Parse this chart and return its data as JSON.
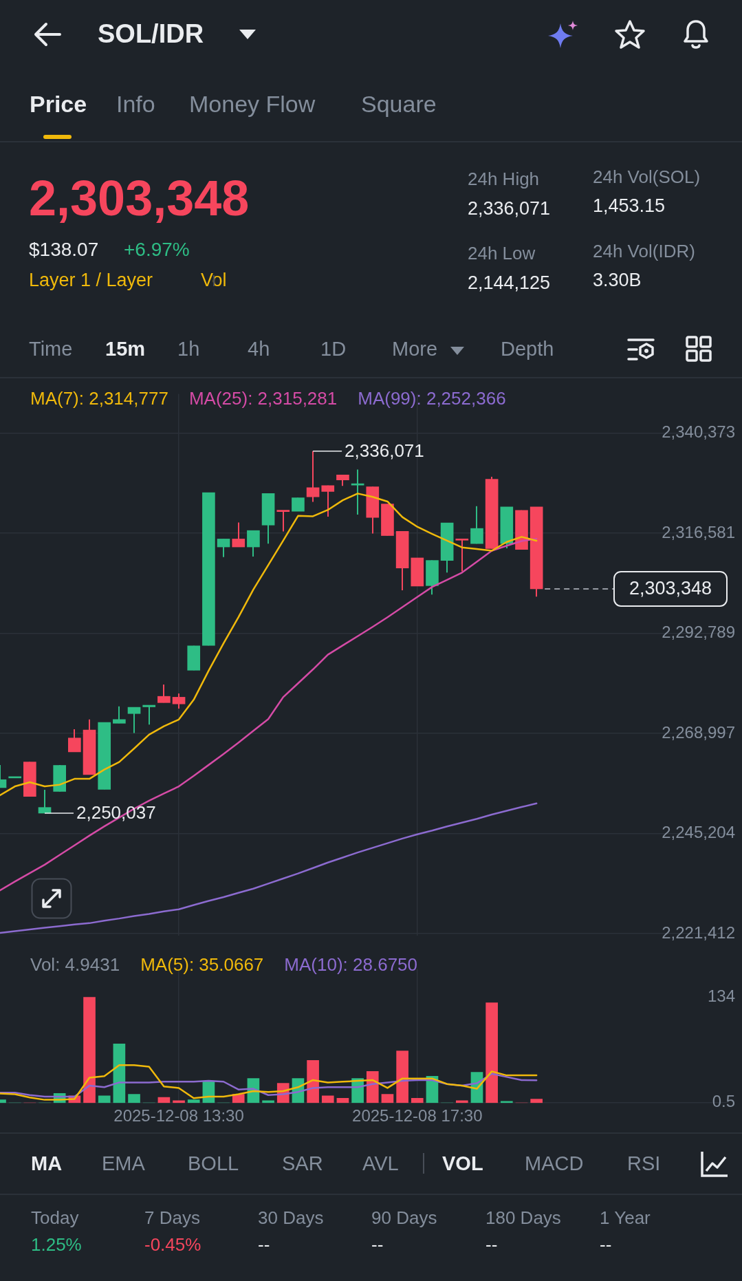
{
  "chart_data": [
    {
      "type": "other",
      "title": "SOL/IDR",
      "annotations": [
        "Price",
        "Info",
        "Money Flow",
        "Square",
        "2,303,348",
        "$138.07",
        "+6.97%",
        "Layer 1 / Layer",
        "Vol",
        "24h High",
        "2,336,071",
        "24h Low",
        "2,144,125",
        "24h Vol(SOL)",
        "1,453.15",
        "24h Vol(IDR)",
        "3.30B",
        "Time",
        "15m",
        "1h",
        "4h",
        "1D",
        "More",
        "Depth"
      ]
    },
    {
      "type": "candlestick",
      "x": [
        "2025-12-08T10:30",
        "2025-12-08T10:45",
        "2025-12-08T11:00",
        "2025-12-08T11:15",
        "2025-12-08T11:30",
        "2025-12-08T11:45",
        "2025-12-08T12:00",
        "2025-12-08T12:15",
        "2025-12-08T12:30",
        "2025-12-08T12:45",
        "2025-12-08T13:00",
        "2025-12-08T13:15",
        "2025-12-08T13:30",
        "2025-12-08T13:45",
        "2025-12-08T14:00",
        "2025-12-08T14:15",
        "2025-12-08T14:30",
        "2025-12-08T14:45",
        "2025-12-08T15:00",
        "2025-12-08T15:15",
        "2025-12-08T15:30",
        "2025-12-08T15:45",
        "2025-12-08T16:00",
        "2025-12-08T16:15",
        "2025-12-08T16:30",
        "2025-12-08T16:45",
        "2025-12-08T17:00",
        "2025-12-08T17:15",
        "2025-12-08T17:30",
        "2025-12-08T17:45",
        "2025-12-08T18:00",
        "2025-12-08T18:15",
        "2025-12-08T18:30",
        "2025-12-08T18:45",
        "2025-12-08T19:00",
        "2025-12-08T19:15",
        "2025-12-08T19:30"
      ],
      "ohlc": [
        [
          2256100,
          2261500,
          2256100,
          2258000
        ],
        [
          2258400,
          2258400,
          2258400,
          2258400
        ],
        [
          2262200,
          2262200,
          2254000,
          2254000
        ],
        [
          2250037,
          2255600,
          2250037,
          2251400
        ],
        [
          2255200,
          2261500,
          2255200,
          2261400
        ],
        [
          2267900,
          2270000,
          2264600,
          2264600
        ],
        [
          2269800,
          2272300,
          2259200,
          2259200
        ],
        [
          2255700,
          2271600,
          2255700,
          2271600
        ],
        [
          2271400,
          2275400,
          2271400,
          2272300
        ],
        [
          2273700,
          2275200,
          2269100,
          2275200
        ],
        [
          2275300,
          2275700,
          2271100,
          2275700
        ],
        [
          2277800,
          2280600,
          2276300,
          2276300
        ],
        [
          2277600,
          2278500,
          2274900,
          2276000
        ],
        [
          2284000,
          2289800,
          2284000,
          2289800
        ],
        [
          2289900,
          2326200,
          2289900,
          2326200
        ],
        [
          2313300,
          2315200,
          2310900,
          2315200
        ],
        [
          2315200,
          2319100,
          2313300,
          2313300
        ],
        [
          2313300,
          2317200,
          2311000,
          2317200
        ],
        [
          2318500,
          2326000,
          2314100,
          2326000
        ],
        [
          2321800,
          2321800,
          2317000,
          2321700
        ],
        [
          2321800,
          2325000,
          2321800,
          2325000
        ],
        [
          2327400,
          2336071,
          2324000,
          2325200
        ],
        [
          2327900,
          2327900,
          2320500,
          2326500
        ],
        [
          2330400,
          2330400,
          2327800,
          2329200
        ],
        [
          2328000,
          2331700,
          2321000,
          2328300
        ],
        [
          2327600,
          2327600,
          2316500,
          2320300
        ],
        [
          2323500,
          2323500,
          2316000,
          2316000
        ],
        [
          2317000,
          2317000,
          2303000,
          2308300
        ],
        [
          2310700,
          2310700,
          2304000,
          2304000
        ],
        [
          2304100,
          2310100,
          2302000,
          2310100
        ],
        [
          2310100,
          2319000,
          2307200,
          2319000
        ],
        [
          2315000,
          2315000,
          2307500,
          2314900
        ],
        [
          2314100,
          2323000,
          2314100,
          2317700
        ],
        [
          2329400,
          2330000,
          2312900,
          2312900
        ],
        [
          2314100,
          2322800,
          2313000,
          2322800
        ],
        [
          2322000,
          2322000,
          2312700,
          2312700
        ],
        [
          2322800,
          2322800,
          2301500,
          2303348
        ]
      ],
      "colors": [
        "#2ebd85",
        "#2ebd85",
        "#f6465d",
        "#2ebd85",
        "#2ebd85",
        "#f6465d",
        "#f6465d",
        "#2ebd85",
        "#2ebd85",
        "#2ebd85",
        "#2ebd85",
        "#f6465d",
        "#f6465d",
        "#2ebd85",
        "#2ebd85",
        "#2ebd85",
        "#f6465d",
        "#2ebd85",
        "#2ebd85",
        "#f6465d",
        "#2ebd85",
        "#f6465d",
        "#f6465d",
        "#f6465d",
        "#2ebd85",
        "#f6465d",
        "#f6465d",
        "#f6465d",
        "#f6465d",
        "#2ebd85",
        "#2ebd85",
        "#f6465d",
        "#2ebd85",
        "#f6465d",
        "#2ebd85",
        "#f6465d",
        "#f6465d"
      ],
      "series": [
        {
          "name": "MA(7): 2,314,777",
          "type": "line",
          "color": "#f0b90b",
          "values": [
            2254300,
            2256400,
            2257400,
            2256400,
            2256800,
            2258200,
            2258200,
            2260400,
            2262200,
            2265400,
            2268700,
            2270700,
            2272300,
            2277000,
            2283900,
            2290400,
            2296600,
            2303200,
            2309000,
            2314800,
            2320700,
            2320600,
            2322100,
            2324400,
            2326000,
            2325200,
            2324100,
            2320400,
            2318100,
            2316400,
            2314800,
            2313200,
            2312800,
            2312400,
            2314500,
            2315700,
            2314777
          ]
        },
        {
          "name": "MA(25): 2,315,281",
          "type": "line",
          "color": "#d54ba6",
          "values": [
            2231700,
            2233800,
            2235800,
            2237800,
            2240100,
            2242400,
            2244700,
            2246900,
            2249000,
            2251100,
            2253000,
            2254700,
            2256400,
            2258900,
            2261500,
            2264100,
            2266800,
            2269600,
            2272400,
            2277600,
            2280900,
            2284200,
            2287700,
            2289900,
            2292100,
            2294300,
            2296600,
            2299000,
            2301400,
            2303800,
            2305500,
            2307200,
            2309800,
            2312400,
            2313600,
            2314700,
            2315281
          ]
        },
        {
          "name": "MA(99): 2,252,366",
          "type": "line",
          "color": "#8c6bd0",
          "values": [
            2221600,
            2222000,
            2222400,
            2222800,
            2223200,
            2223600,
            2223900,
            2224500,
            2225000,
            2225600,
            2226100,
            2226700,
            2227200,
            2228200,
            2229200,
            2230100,
            2231100,
            2232100,
            2233300,
            2234500,
            2235700,
            2237000,
            2238300,
            2239500,
            2240700,
            2241800,
            2242900,
            2244000,
            2245000,
            2245900,
            2246900,
            2247800,
            2248700,
            2249700,
            2250600,
            2251500,
            2252366
          ]
        }
      ],
      "xlim": [
        "2025-12-08T10:30",
        "2025-12-08T22:43"
      ],
      "ylim": [
        2221000,
        2349700
      ],
      "xticks": [
        {
          "value": "2025-12-08T13:30",
          "label": null
        },
        {
          "value": "2025-12-08T17:30",
          "label": null
        }
      ],
      "yticks": [
        {
          "value": 2221412,
          "label": "2,221,412"
        },
        {
          "value": 2245204,
          "label": "2,245,204"
        },
        {
          "value": 2268997,
          "label": "2,268,997"
        },
        {
          "value": 2292789,
          "label": "2,292,789"
        },
        {
          "value": 2316581,
          "label": "2,316,581"
        },
        {
          "value": 2340373,
          "label": "2,340,373"
        }
      ],
      "tick_labels": "y",
      "grid": true,
      "legend": "top left",
      "annotations": [
        {
          "text": "2,336,071",
          "x": "2025-12-08T15:45",
          "y": 2336071
        },
        {
          "text": "2,250,037",
          "x": "2025-12-08T11:15",
          "y": 2250037
        }
      ],
      "ref_lines": [
        {
          "axis": "y",
          "value": 2303348,
          "label": "2,303,348",
          "line_style": "dashed"
        }
      ]
    },
    {
      "type": "bar",
      "x": [
        "2025-12-08T10:30",
        "2025-12-08T10:45",
        "2025-12-08T11:00",
        "2025-12-08T11:15",
        "2025-12-08T11:30",
        "2025-12-08T11:45",
        "2025-12-08T12:00",
        "2025-12-08T12:15",
        "2025-12-08T12:30",
        "2025-12-08T12:45",
        "2025-12-08T13:00",
        "2025-12-08T13:15",
        "2025-12-08T13:30",
        "2025-12-08T13:45",
        "2025-12-08T14:00",
        "2025-12-08T14:15",
        "2025-12-08T14:30",
        "2025-12-08T14:45",
        "2025-12-08T15:00",
        "2025-12-08T15:15",
        "2025-12-08T15:30",
        "2025-12-08T15:45",
        "2025-12-08T16:00",
        "2025-12-08T16:15",
        "2025-12-08T16:30",
        "2025-12-08T16:45",
        "2025-12-08T17:00",
        "2025-12-08T17:15",
        "2025-12-08T17:30",
        "2025-12-08T17:45",
        "2025-12-08T18:00",
        "2025-12-08T18:15",
        "2025-12-08T18:30",
        "2025-12-08T18:45",
        "2025-12-08T19:00",
        "2025-12-08T19:15",
        "2025-12-08T19:30"
      ],
      "series": [
        {
          "name": "Vol: 4.9431",
          "colors": [
            "#2ebd85",
            "#2ebd85",
            "#f6465d",
            "#2ebd85",
            "#2ebd85",
            "#f6465d",
            "#f6465d",
            "#2ebd85",
            "#2ebd85",
            "#2ebd85",
            "#2ebd85",
            "#f6465d",
            "#f6465d",
            "#2ebd85",
            "#2ebd85",
            "#2ebd85",
            "#f6465d",
            "#2ebd85",
            "#2ebd85",
            "#f6465d",
            "#2ebd85",
            "#f6465d",
            "#f6465d",
            "#f6465d",
            "#2ebd85",
            "#f6465d",
            "#f6465d",
            "#f6465d",
            "#f6465d",
            "#2ebd85",
            "#2ebd85",
            "#f6465d",
            "#2ebd85",
            "#f6465d",
            "#2ebd85",
            "#f6465d",
            "#f6465d"
          ],
          "values": [
            4,
            0,
            0,
            0,
            12,
            9,
            134,
            9,
            75,
            11,
            0,
            7,
            3,
            4,
            27,
            0,
            11,
            31,
            3,
            25,
            31,
            54,
            9,
            6,
            31,
            40,
            11,
            66,
            6,
            34,
            0,
            3,
            39,
            127,
            2,
            0,
            4.9431
          ]
        },
        {
          "name": "MA(5): 35.0667",
          "type": "line",
          "color": "#f0b90b",
          "values": [
            12,
            11,
            7,
            4,
            4,
            5,
            32,
            34,
            48,
            48,
            46,
            21,
            19,
            6,
            8,
            8,
            11,
            15,
            14,
            15,
            20,
            29,
            26,
            27,
            28,
            29,
            19,
            31,
            31,
            31,
            24,
            22,
            18,
            40,
            35,
            35,
            35.0667
          ]
        },
        {
          "name": "MA(10): 28.6750",
          "type": "line",
          "color": "#8c6bd0",
          "values": [
            13,
            13,
            10,
            8,
            8,
            8,
            22,
            20,
            26,
            26,
            26,
            27,
            27,
            27,
            28,
            27,
            17,
            18,
            10,
            11,
            14,
            19,
            20,
            20,
            20,
            24,
            26,
            28,
            29,
            29,
            24,
            22,
            25,
            37,
            33,
            29,
            28.675
          ]
        }
      ],
      "xlim": [
        "2025-12-08T10:30",
        "2025-12-08T22:43"
      ],
      "ylim": [
        0,
        170
      ],
      "xticks": [
        {
          "value": "2025-12-08T13:30",
          "label": "2025-12-08 13:30"
        },
        {
          "value": "2025-12-08T17:30",
          "label": "2025-12-08 17:30"
        }
      ],
      "yticks": [
        0.5,
        134
      ],
      "grid": "x",
      "legend": "top left"
    },
    {
      "type": "other",
      "annotations": [
        "MA",
        "EMA",
        "BOLL",
        "SAR",
        "AVL",
        "VOL",
        "MACD",
        "RSI",
        "Today",
        "1.25%",
        "7 Days",
        "-0.45%",
        "30 Days",
        "--",
        "90 Days",
        "--",
        "180 Days",
        "--",
        "1 Year",
        "--"
      ]
    }
  ]
}
